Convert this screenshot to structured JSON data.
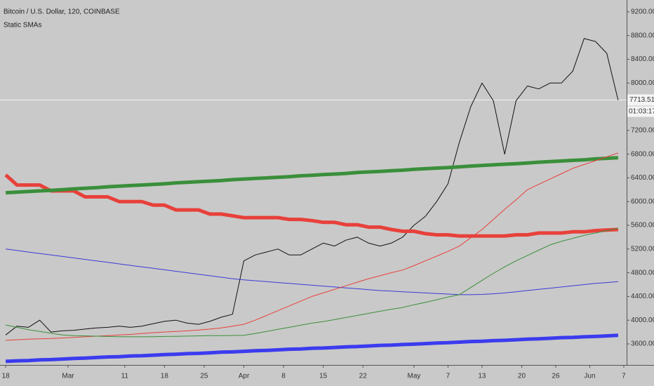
{
  "chart_data": {
    "type": "line",
    "title": "Bitcoin / U.S. Dollar, 120, COINBASE",
    "subtitle": "Static SMAs",
    "x": [
      0,
      2,
      4,
      6,
      8,
      10,
      12,
      14,
      16,
      18,
      20,
      22,
      24,
      26,
      28,
      30,
      32,
      34,
      36,
      38,
      40,
      42,
      44,
      46,
      48,
      50,
      52,
      54,
      56,
      58,
      60,
      62,
      64,
      66,
      68,
      70,
      72,
      74,
      76,
      78,
      80,
      82,
      84,
      86,
      88,
      90,
      92,
      94,
      96,
      98,
      100,
      102,
      104,
      106,
      108
    ],
    "xlim": [
      -1,
      109.5
    ],
    "xticks": [
      {
        "value": 0,
        "label": "18"
      },
      {
        "value": 11,
        "label": "Mar"
      },
      {
        "value": 21,
        "label": "11"
      },
      {
        "value": 28,
        "label": "18"
      },
      {
        "value": 35,
        "label": "25"
      },
      {
        "value": 42,
        "label": "Apr"
      },
      {
        "value": 49,
        "label": "8"
      },
      {
        "value": 56,
        "label": "15"
      },
      {
        "value": 63,
        "label": "22"
      },
      {
        "value": 72,
        "label": "May"
      },
      {
        "value": 78,
        "label": "7"
      },
      {
        "value": 84,
        "label": "13"
      },
      {
        "value": 91,
        "label": "20"
      },
      {
        "value": 97,
        "label": "26"
      },
      {
        "value": 103,
        "label": "Jun"
      },
      {
        "value": 109,
        "label": "7"
      }
    ],
    "ylim": [
      3245,
      9400
    ],
    "yticks": [
      {
        "value": 3600,
        "label": "3600.00"
      },
      {
        "value": 4000,
        "label": "4000.00"
      },
      {
        "value": 4400,
        "label": "4400.00"
      },
      {
        "value": 4800,
        "label": "4800.00"
      },
      {
        "value": 5200,
        "label": "5200.00"
      },
      {
        "value": 5600,
        "label": "5600.00"
      },
      {
        "value": 6000,
        "label": "6000.00"
      },
      {
        "value": 6400,
        "label": "6400.00"
      },
      {
        "value": 6800,
        "label": "6800.00"
      },
      {
        "value": 7200,
        "label": "7200.00"
      },
      {
        "value": 8000,
        "label": "8000.00"
      },
      {
        "value": 8400,
        "label": "8400.00"
      },
      {
        "value": 8800,
        "label": "8800.00"
      },
      {
        "value": 9200,
        "label": "9200.00"
      }
    ],
    "last_price": 7713.51,
    "countdown": "01:03:17",
    "series": [
      {
        "color": "#111111",
        "width": 1,
        "values": [
          3750,
          3900,
          3880,
          4000,
          3800,
          3820,
          3830,
          3850,
          3870,
          3880,
          3900,
          3880,
          3900,
          3940,
          3980,
          4000,
          3950,
          3930,
          3980,
          4050,
          4100,
          5000,
          5100,
          5150,
          5200,
          5100,
          5100,
          5200,
          5300,
          5250,
          5350,
          5400,
          5300,
          5250,
          5300,
          5400,
          5600,
          5750,
          6000,
          6300,
          7000,
          7600,
          8000,
          7700,
          6800,
          7700,
          7950,
          7900,
          8000,
          8000,
          8200,
          8750,
          8700,
          8500,
          7710
        ]
      },
      {
        "color": "#e8403a",
        "width": 5,
        "values": [
          6450,
          6280,
          6280,
          6280,
          6180,
          6180,
          6180,
          6080,
          6080,
          6080,
          6000,
          6000,
          6000,
          5940,
          5940,
          5860,
          5860,
          5860,
          5790,
          5790,
          5760,
          5730,
          5730,
          5730,
          5730,
          5700,
          5700,
          5680,
          5650,
          5650,
          5610,
          5610,
          5570,
          5570,
          5530,
          5500,
          5500,
          5460,
          5440,
          5440,
          5420,
          5420,
          5420,
          5420,
          5420,
          5440,
          5440,
          5470,
          5470,
          5470,
          5490,
          5490,
          5510,
          5520,
          5530
        ]
      },
      {
        "color": "#3a8f3a",
        "width": 5,
        "values": [
          6150,
          6160,
          6170,
          6180,
          6190,
          6200,
          6215,
          6225,
          6235,
          6250,
          6260,
          6270,
          6280,
          6290,
          6300,
          6315,
          6325,
          6335,
          6345,
          6355,
          6370,
          6380,
          6390,
          6400,
          6410,
          6420,
          6435,
          6445,
          6455,
          6465,
          6475,
          6490,
          6500,
          6510,
          6520,
          6530,
          6545,
          6555,
          6565,
          6575,
          6585,
          6600,
          6610,
          6620,
          6630,
          6640,
          6650,
          6665,
          6675,
          6685,
          6695,
          6705,
          6720,
          6730,
          6740
        ]
      },
      {
        "color": "#3b3bd6",
        "width": 1,
        "values": [
          5200,
          5175,
          5150,
          5125,
          5100,
          5075,
          5050,
          5025,
          5000,
          4975,
          4950,
          4925,
          4900,
          4875,
          4850,
          4825,
          4800,
          4775,
          4750,
          4725,
          4700,
          4680,
          4665,
          4650,
          4635,
          4620,
          4605,
          4590,
          4575,
          4560,
          4545,
          4530,
          4515,
          4500,
          4490,
          4480,
          4470,
          4460,
          4450,
          4440,
          4430,
          4430,
          4435,
          4445,
          4460,
          4480,
          4500,
          4520,
          4540,
          4560,
          4580,
          4600,
          4620,
          4635,
          4650
        ]
      },
      {
        "color": "#e8403a",
        "width": 1,
        "values": [
          3660,
          3670,
          3680,
          3685,
          3690,
          3700,
          3710,
          3720,
          3730,
          3740,
          3750,
          3760,
          3775,
          3790,
          3800,
          3810,
          3820,
          3835,
          3850,
          3870,
          3900,
          3930,
          4000,
          4080,
          4160,
          4240,
          4320,
          4400,
          4460,
          4520,
          4580,
          4640,
          4700,
          4750,
          4800,
          4845,
          4920,
          5000,
          5080,
          5160,
          5250,
          5390,
          5530,
          5700,
          5870,
          6030,
          6200,
          6290,
          6380,
          6470,
          6560,
          6625,
          6690,
          6755,
          6820
        ]
      },
      {
        "color": "#3a8f3a",
        "width": 1,
        "values": [
          3920,
          3880,
          3840,
          3810,
          3780,
          3750,
          3740,
          3735,
          3730,
          3725,
          3722,
          3720,
          3720,
          3722,
          3725,
          3728,
          3732,
          3735,
          3738,
          3740,
          3742,
          3745,
          3775,
          3810,
          3845,
          3880,
          3915,
          3950,
          3975,
          4010,
          4045,
          4080,
          4115,
          4150,
          4185,
          4215,
          4260,
          4300,
          4345,
          4390,
          4430,
          4550,
          4670,
          4790,
          4900,
          5000,
          5090,
          5180,
          5270,
          5330,
          5380,
          5430,
          5470,
          5510,
          5550
        ]
      },
      {
        "color": "#3b3bef",
        "width": 5,
        "values": [
          3305,
          3315,
          3320,
          3330,
          3335,
          3345,
          3355,
          3360,
          3370,
          3380,
          3385,
          3395,
          3400,
          3410,
          3420,
          3425,
          3435,
          3440,
          3450,
          3460,
          3465,
          3475,
          3485,
          3490,
          3500,
          3510,
          3515,
          3525,
          3530,
          3540,
          3550,
          3555,
          3565,
          3575,
          3580,
          3590,
          3595,
          3605,
          3615,
          3620,
          3630,
          3640,
          3645,
          3655,
          3660,
          3670,
          3680,
          3685,
          3695,
          3705,
          3710,
          3720,
          3725,
          3735,
          3745
        ]
      }
    ]
  }
}
